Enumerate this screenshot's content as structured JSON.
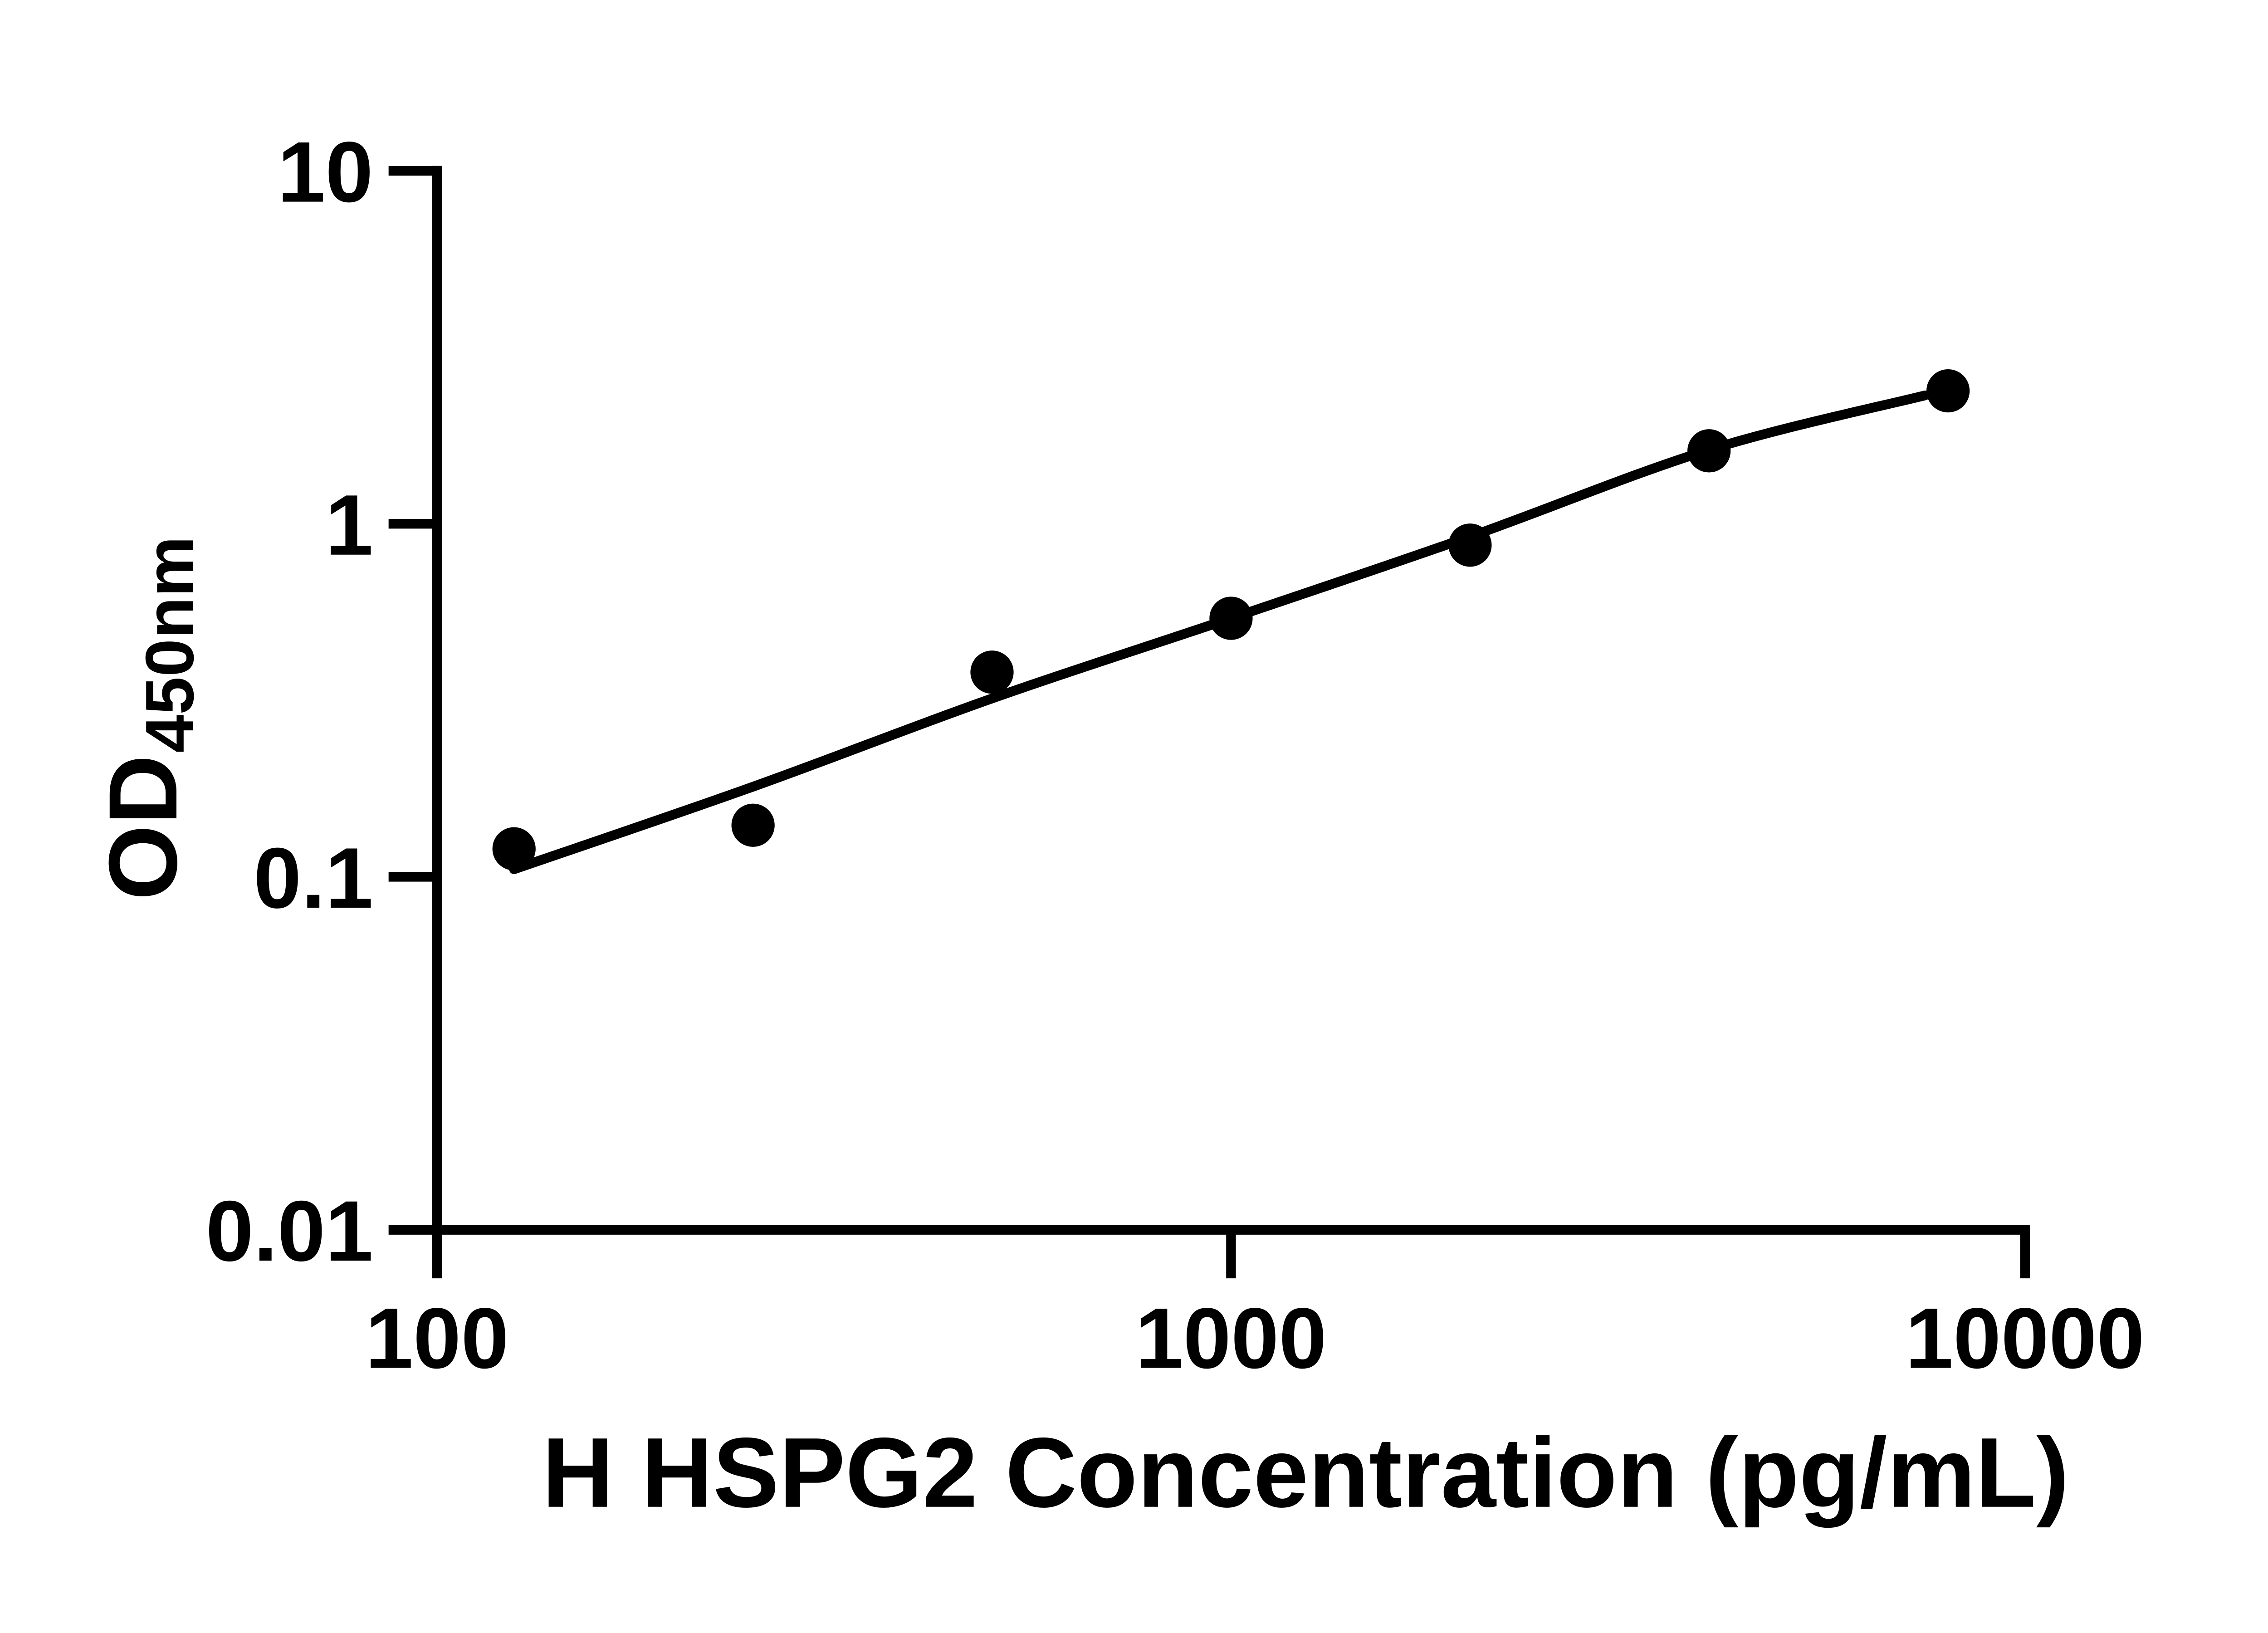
{
  "figure": {
    "background_color": "#ffffff",
    "ink_color": "#000000"
  },
  "chart_data": {
    "type": "scatter",
    "title": "",
    "xlabel": "H HSPG2 Concentration (pg/mL)",
    "ylabel_main": "OD",
    "ylabel_sub": "450nm",
    "x_scale": "log",
    "y_scale": "log",
    "xlim": [
      100,
      10000
    ],
    "ylim": [
      0.01,
      10
    ],
    "grid": false,
    "legend": null,
    "x_ticks": [
      {
        "value": 100,
        "label": "100"
      },
      {
        "value": 1000,
        "label": "1000"
      },
      {
        "value": 10000,
        "label": "10000"
      }
    ],
    "y_ticks": [
      {
        "value": 10,
        "label": "10"
      },
      {
        "value": 1,
        "label": "1"
      },
      {
        "value": 0.1,
        "label": "0.1"
      },
      {
        "value": 0.01,
        "label": "0.01"
      }
    ],
    "series": [
      {
        "name": "standard-curve-points",
        "marker": "filled-circle",
        "color": "#000000",
        "points": [
          {
            "x": 125,
            "y": 0.12
          },
          {
            "x": 250,
            "y": 0.14
          },
          {
            "x": 500,
            "y": 0.38
          },
          {
            "x": 1000,
            "y": 0.54
          },
          {
            "x": 2000,
            "y": 0.87
          },
          {
            "x": 4000,
            "y": 1.61
          },
          {
            "x": 8000,
            "y": 2.38
          }
        ]
      }
    ],
    "fit_line": {
      "name": "four-parameter-fit-curve",
      "color": "#000000",
      "points": [
        {
          "x": 125,
          "y": 0.105
        },
        {
          "x": 250,
          "y": 0.18
        },
        {
          "x": 500,
          "y": 0.32
        },
        {
          "x": 1000,
          "y": 0.54
        },
        {
          "x": 2000,
          "y": 0.92
        },
        {
          "x": 4000,
          "y": 1.62
        },
        {
          "x": 7480,
          "y": 2.31
        }
      ]
    }
  }
}
